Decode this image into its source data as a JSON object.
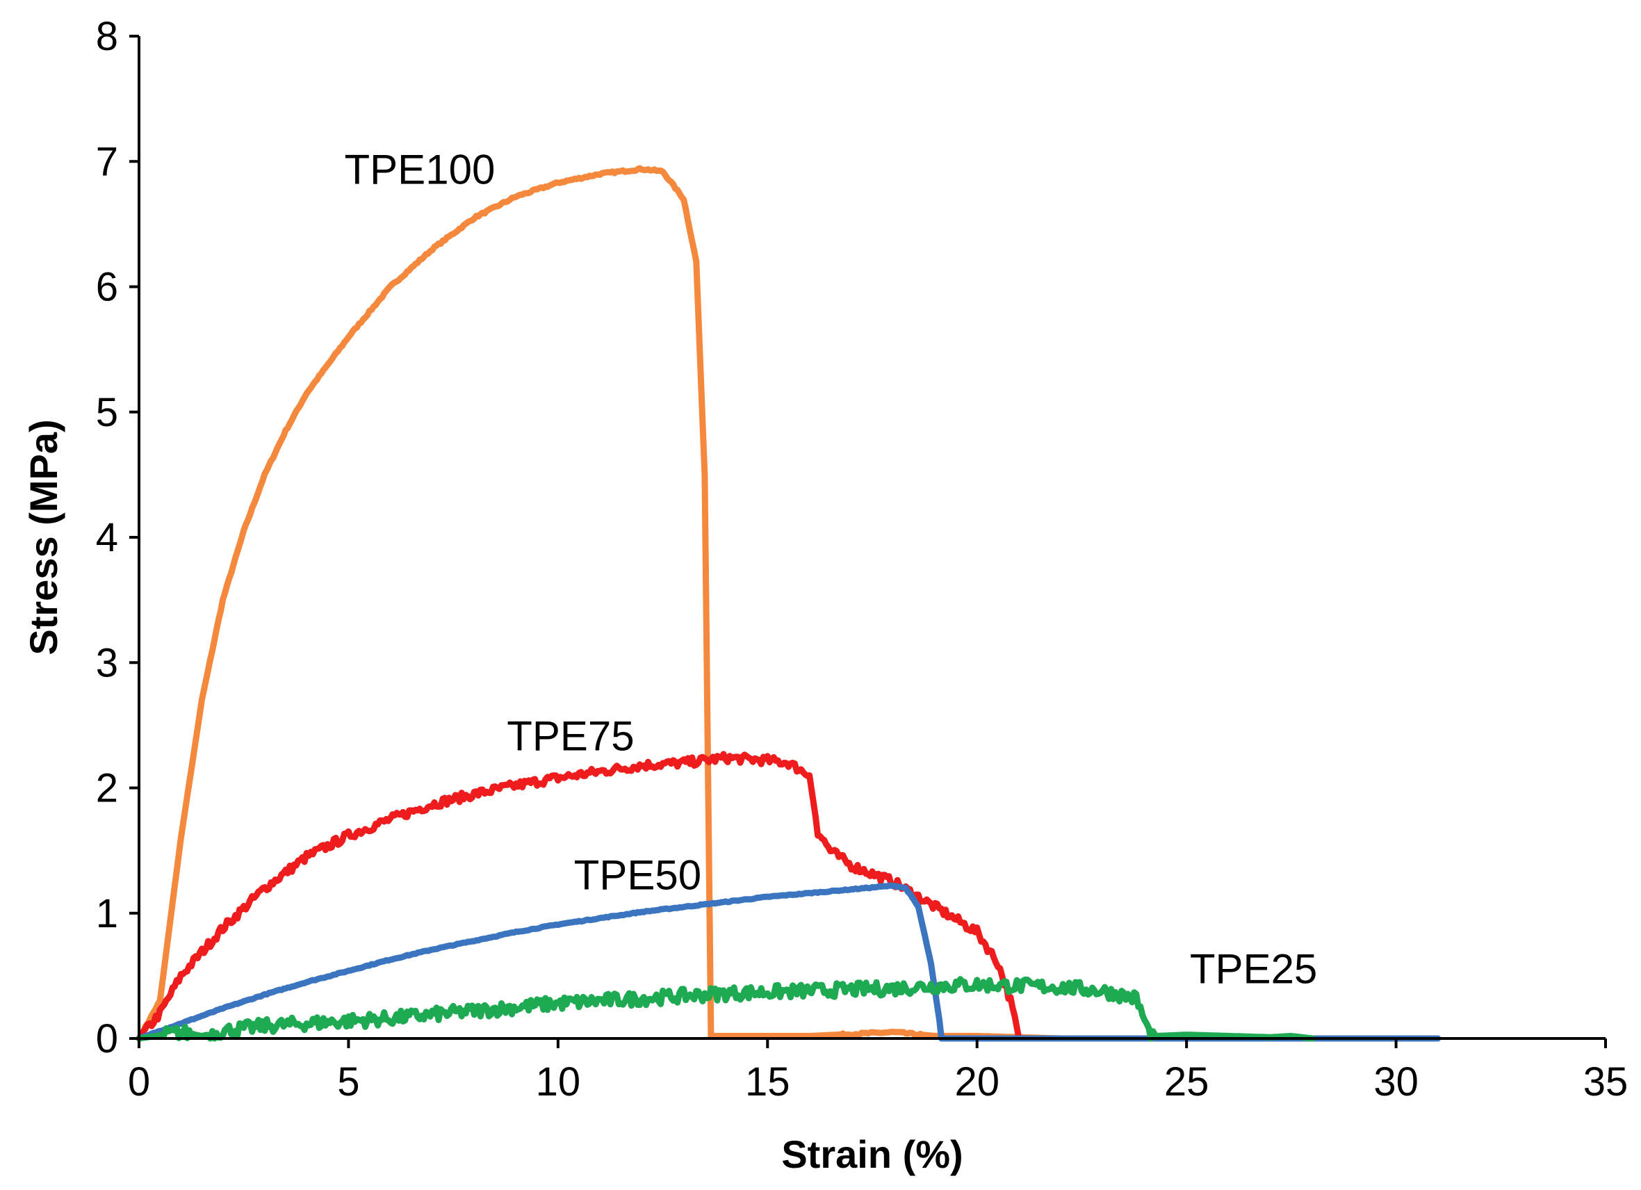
{
  "chart_data": {
    "type": "line",
    "title": "",
    "xlabel": "Strain (%)",
    "ylabel": "Stress (MPa)",
    "xlim": [
      0,
      35
    ],
    "ylim": [
      0,
      8
    ],
    "xticks": [
      0,
      5,
      10,
      15,
      20,
      25,
      30,
      35
    ],
    "yticks": [
      0,
      1,
      2,
      3,
      4,
      5,
      6,
      7,
      8
    ],
    "grid": false,
    "legend": "none",
    "series": [
      {
        "name": "TPE100",
        "label": "TPE100",
        "color": "#F4883C",
        "x": [
          0,
          0.5,
          1,
          1.5,
          2,
          2.5,
          3,
          3.5,
          4,
          5,
          6,
          7,
          8,
          9,
          10,
          11,
          12,
          12.5,
          13,
          13.3,
          13.5,
          13.6,
          13.65,
          14,
          16,
          18,
          19,
          20,
          22
        ],
        "y": [
          0,
          0.3,
          1.6,
          2.7,
          3.5,
          4.05,
          4.5,
          4.85,
          5.15,
          5.6,
          6.0,
          6.3,
          6.55,
          6.72,
          6.83,
          6.9,
          6.94,
          6.92,
          6.7,
          6.2,
          4.5,
          1.5,
          0.02,
          0.02,
          0.02,
          0.05,
          0.02,
          0.02,
          0.0
        ]
      },
      {
        "name": "TPE75",
        "label": "TPE75",
        "color": "#EE1C1C",
        "x": [
          0,
          0.5,
          1,
          2,
          3,
          4,
          5,
          6,
          7,
          8,
          9,
          10,
          11,
          12,
          13,
          14,
          15,
          15.5,
          16,
          16.2,
          16.5,
          17,
          18,
          19,
          20,
          20.5,
          20.8,
          21,
          22
        ],
        "y": [
          0,
          0.2,
          0.5,
          0.88,
          1.2,
          1.45,
          1.62,
          1.75,
          1.87,
          1.95,
          2.02,
          2.08,
          2.13,
          2.18,
          2.2,
          2.24,
          2.22,
          2.2,
          2.1,
          1.65,
          1.5,
          1.38,
          1.25,
          1.05,
          0.85,
          0.6,
          0.3,
          0.0,
          0.0
        ]
      },
      {
        "name": "TPE50",
        "label": "TPE50",
        "color": "#3B75C0",
        "x": [
          0,
          1,
          2,
          3,
          4,
          5,
          6,
          7,
          8,
          9,
          10,
          11,
          12,
          13,
          14,
          15,
          16,
          17,
          18,
          18.3,
          18.6,
          18.9,
          19.1,
          19.15,
          22,
          26,
          31
        ],
        "y": [
          0,
          0.12,
          0.24,
          0.35,
          0.45,
          0.54,
          0.63,
          0.71,
          0.78,
          0.85,
          0.91,
          0.96,
          1.01,
          1.05,
          1.09,
          1.13,
          1.16,
          1.19,
          1.22,
          1.2,
          1.05,
          0.6,
          0.15,
          0.0,
          0.0,
          0.0,
          0.0
        ]
      },
      {
        "name": "TPE25",
        "label": "TPE25",
        "color": "#1DAA53",
        "x": [
          0,
          1,
          1.5,
          2,
          3,
          4,
          5,
          6,
          7,
          8,
          9,
          10,
          11,
          12,
          13,
          14,
          15,
          16,
          17,
          18,
          19,
          20,
          21,
          22,
          23,
          23.8,
          24.1,
          24.3,
          25,
          26,
          27,
          27.5,
          28
        ],
        "y": [
          0,
          0.05,
          0.02,
          0.06,
          0.1,
          0.12,
          0.14,
          0.16,
          0.19,
          0.22,
          0.25,
          0.28,
          0.3,
          0.32,
          0.34,
          0.36,
          0.37,
          0.38,
          0.39,
          0.4,
          0.42,
          0.43,
          0.42,
          0.41,
          0.38,
          0.32,
          0.05,
          0.02,
          0.03,
          0.02,
          0.01,
          0.02,
          0.0
        ]
      }
    ],
    "annotations": [
      {
        "text": "TPE100",
        "x": 6.7,
        "y": 6.82
      },
      {
        "text": "TPE75",
        "x": 10.3,
        "y": 2.3
      },
      {
        "text": "TPE50",
        "x": 11.9,
        "y": 1.19
      },
      {
        "text": "TPE25",
        "x": 26.6,
        "y": 0.44
      }
    ]
  }
}
